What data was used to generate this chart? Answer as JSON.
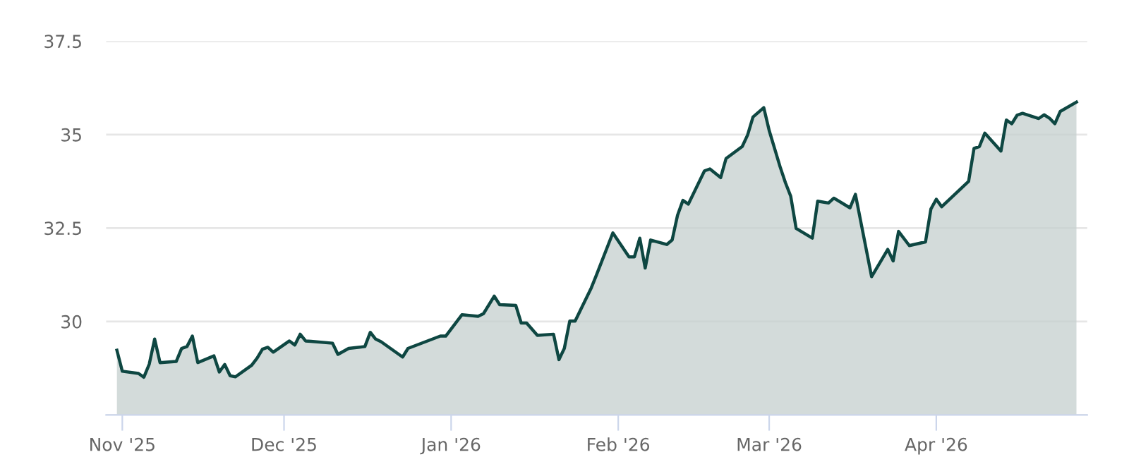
{
  "chart_data": {
    "type": "area",
    "color": "#0e4742",
    "grid": "y",
    "xlim": [
      "2025-10-29",
      "2026-04-29"
    ],
    "ylim": [
      27.5,
      37.5
    ],
    "yticks": [
      {
        "value": 27.5,
        "label": null
      },
      30,
      32.5,
      35,
      37.5
    ],
    "xticks": [
      {
        "value": "2025-11-01",
        "label": "Nov '25"
      },
      {
        "value": "2025-12-01",
        "label": "Dec '25"
      },
      {
        "value": "2026-01-01",
        "label": "Jan '26"
      },
      {
        "value": "2026-02-01",
        "label": "Feb '26"
      },
      {
        "value": "2026-03-01",
        "label": "Mar '26"
      },
      {
        "value": "2026-04-01",
        "label": "Apr '26"
      }
    ],
    "x": [
      "2025-10-31",
      "2025-11-01",
      "2025-11-04",
      "2025-11-05",
      "2025-11-06",
      "2025-11-07",
      "2025-11-08",
      "2025-11-11",
      "2025-11-12",
      "2025-11-13",
      "2025-11-14",
      "2025-11-15",
      "2025-11-18",
      "2025-11-19",
      "2025-11-20",
      "2025-11-21",
      "2025-11-22",
      "2025-11-25",
      "2025-11-26",
      "2025-11-27",
      "2025-11-28",
      "2025-11-29",
      "2025-12-02",
      "2025-12-03",
      "2025-12-04",
      "2025-12-05",
      "2025-12-06",
      "2025-12-10",
      "2025-12-11",
      "2025-12-13",
      "2025-12-16",
      "2025-12-17",
      "2025-12-18",
      "2025-12-19",
      "2025-12-23",
      "2025-12-24",
      "2025-12-30",
      "2025-12-31",
      "2026-01-03",
      "2026-01-06",
      "2026-01-07",
      "2026-01-09",
      "2026-01-10",
      "2026-01-13",
      "2026-01-14",
      "2026-01-15",
      "2026-01-17",
      "2026-01-20",
      "2026-01-21",
      "2026-01-22",
      "2026-01-23",
      "2026-01-24",
      "2026-01-27",
      "2026-01-28",
      "2026-01-31",
      "2026-02-03",
      "2026-02-04",
      "2026-02-05",
      "2026-02-06",
      "2026-02-07",
      "2026-02-10",
      "2026-02-11",
      "2026-02-12",
      "2026-02-13",
      "2026-02-14",
      "2026-02-17",
      "2026-02-18",
      "2026-02-20",
      "2026-02-21",
      "2026-02-24",
      "2026-02-25",
      "2026-02-26",
      "2026-02-28",
      "2026-03-01",
      "2026-03-02",
      "2026-03-03",
      "2026-03-04",
      "2026-03-05",
      "2026-03-06",
      "2026-03-09",
      "2026-03-10",
      "2026-03-12",
      "2026-03-13",
      "2026-03-16",
      "2026-03-17",
      "2026-03-20",
      "2026-03-23",
      "2026-03-24",
      "2026-03-25",
      "2026-03-27",
      "2026-03-30",
      "2026-03-31",
      "2026-04-01",
      "2026-04-02",
      "2026-04-07",
      "2026-04-08",
      "2026-04-09",
      "2026-04-10",
      "2026-04-13",
      "2026-04-14",
      "2026-04-15",
      "2026-04-16",
      "2026-04-17",
      "2026-04-20",
      "2026-04-21",
      "2026-04-22",
      "2026-04-23",
      "2026-04-24",
      "2026-04-27"
    ],
    "values": [
      29.23,
      28.67,
      28.61,
      28.51,
      28.86,
      29.53,
      28.9,
      28.93,
      29.28,
      29.33,
      29.61,
      28.9,
      29.08,
      28.65,
      28.85,
      28.55,
      28.52,
      28.83,
      29.02,
      29.26,
      29.31,
      29.18,
      29.48,
      29.37,
      29.66,
      29.48,
      29.47,
      29.42,
      29.12,
      29.28,
      29.33,
      29.71,
      29.53,
      29.46,
      29.05,
      29.28,
      29.61,
      29.61,
      30.18,
      30.14,
      30.21,
      30.68,
      30.45,
      30.43,
      29.96,
      29.96,
      29.63,
      29.66,
      28.98,
      29.28,
      30.01,
      30.01,
      30.9,
      31.26,
      32.37,
      31.73,
      31.73,
      32.23,
      31.43,
      32.18,
      32.06,
      32.18,
      32.84,
      33.24,
      33.14,
      34.03,
      34.08,
      33.85,
      34.36,
      34.68,
      34.99,
      35.47,
      35.72,
      35.11,
      34.63,
      34.15,
      33.72,
      33.35,
      32.49,
      32.23,
      33.22,
      33.17,
      33.3,
      33.04,
      33.4,
      31.2,
      31.93,
      31.62,
      32.41,
      32.03,
      32.13,
      33.01,
      33.27,
      33.07,
      33.75,
      34.63,
      34.68,
      35.04,
      34.56,
      35.39,
      35.29,
      35.52,
      35.57,
      35.43,
      35.53,
      35.44,
      35.29,
      35.62,
      35.87
    ]
  }
}
